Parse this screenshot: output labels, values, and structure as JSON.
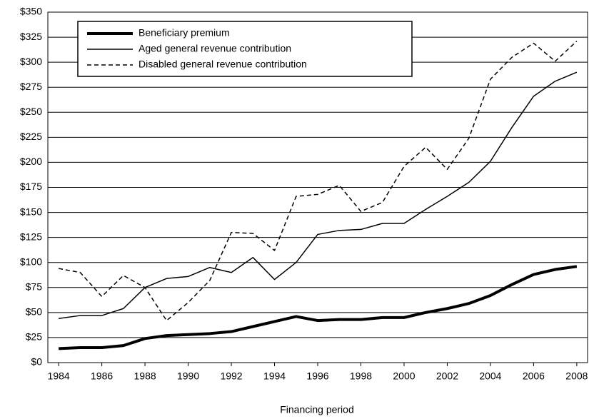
{
  "chart_data": {
    "type": "line",
    "x_label": "Financing period",
    "x": [
      1984,
      1985,
      1986,
      1987,
      1988,
      1989,
      1990,
      1991,
      1992,
      1993,
      1994,
      1995,
      1996,
      1997,
      1998,
      1999,
      2000,
      2001,
      2002,
      2003,
      2004,
      2005,
      2006,
      2007,
      2008
    ],
    "series": [
      {
        "name": "Beneficiary premium",
        "color": "#000000",
        "width": 4,
        "dash": "none",
        "values": [
          14,
          15,
          15,
          17,
          24,
          27,
          28,
          29,
          31,
          36,
          41,
          46,
          42,
          43,
          43,
          45,
          45,
          50,
          54,
          59,
          67,
          78,
          88,
          93,
          96
        ]
      },
      {
        "name": "Aged general revenue contribution",
        "color": "#000000",
        "width": 1.5,
        "dash": "none",
        "values": [
          44,
          47,
          47,
          54,
          75,
          84,
          86,
          95,
          90,
          105,
          83,
          100,
          128,
          132,
          133,
          139,
          139,
          153,
          166,
          180,
          201,
          235,
          266,
          281,
          290
        ]
      },
      {
        "name": "Disabled general revenue contribution",
        "color": "#000000",
        "width": 1.5,
        "dash": "6,4",
        "values": [
          94,
          90,
          66,
          87,
          75,
          42,
          60,
          82,
          130,
          129,
          112,
          166,
          168,
          177,
          151,
          160,
          196,
          215,
          193,
          224,
          283,
          305,
          319,
          301,
          321
        ]
      }
    ],
    "xlim": [
      1983.5,
      2008.5
    ],
    "xticks": [
      1984,
      1986,
      1988,
      1990,
      1992,
      1994,
      1996,
      1998,
      2000,
      2002,
      2004,
      2006,
      2008
    ],
    "ylim": [
      0,
      350
    ],
    "yticks": [
      {
        "value": 0,
        "label": "$0"
      },
      {
        "value": 25,
        "label": "$25"
      },
      {
        "value": 50,
        "label": "$50"
      },
      {
        "value": 75,
        "label": "$75"
      },
      {
        "value": 100,
        "label": "$100"
      },
      {
        "value": 125,
        "label": "$125"
      },
      {
        "value": 150,
        "label": "$150"
      },
      {
        "value": 175,
        "label": "$175"
      },
      {
        "value": 200,
        "label": "$200"
      },
      {
        "value": 225,
        "label": "$225"
      },
      {
        "value": 250,
        "label": "$250"
      },
      {
        "value": 275,
        "label": "$275"
      },
      {
        "value": 300,
        "label": "$300"
      },
      {
        "value": 325,
        "label": "$325"
      },
      {
        "value": 350,
        "label": "$350"
      }
    ],
    "grid": true,
    "legend": "top-left"
  }
}
